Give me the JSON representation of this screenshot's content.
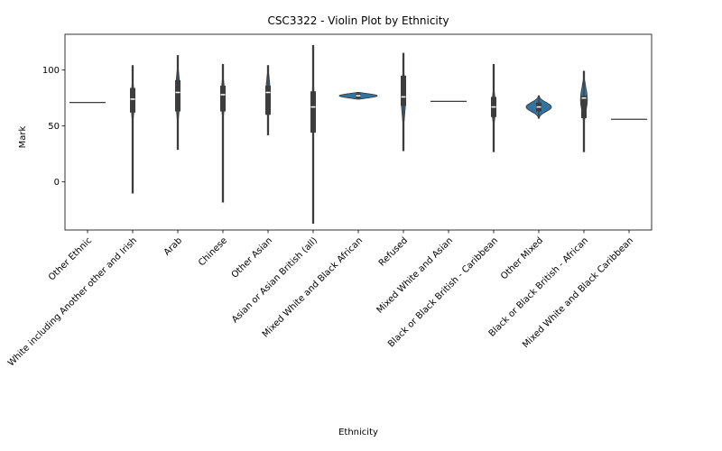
{
  "chart_data": {
    "type": "violin",
    "title": "CSC3322 - Violin Plot by Ethnicity",
    "xlabel": "Ethnicity",
    "ylabel": "Mark",
    "ylim": [
      -43,
      132
    ],
    "yticks": [
      0,
      50,
      100
    ],
    "grid": false,
    "legend": "none",
    "colors": {
      "violin": "#3274a1",
      "box": "#3d3d3d",
      "median": "#ffffff",
      "axis": "#000000"
    },
    "categories": [
      "Other Ethnic",
      "White including Another other and Irish",
      "Arab",
      "Chinese",
      "Other Asian",
      "Asian or Asian British (all)",
      "Mixed White and Black African",
      "Refused",
      "Mixed White and Asian",
      "Black or Black British - Caribbean",
      "Other Mixed",
      "Black or Black British - African",
      "Mixed White and Black Caribbean"
    ],
    "violins": [
      {
        "min": 71,
        "q1": 71,
        "median": 71,
        "q3": 71,
        "max": 71,
        "single": true
      },
      {
        "min": -10,
        "q1": 62,
        "median": 74,
        "q3": 84,
        "max": 104,
        "maxw": 0.04
      },
      {
        "min": 29,
        "q1": 63,
        "median": 80,
        "q3": 91,
        "max": 113,
        "maxw": 0.05
      },
      {
        "min": -18,
        "q1": 63,
        "median": 78,
        "q3": 86,
        "max": 105,
        "maxw": 0.045
      },
      {
        "min": 42,
        "q1": 60,
        "median": 80,
        "q3": 86,
        "max": 104,
        "maxw": 0.05
      },
      {
        "min": -37,
        "q1": 44,
        "median": 67,
        "q3": 81,
        "max": 122,
        "maxw": 0.025
      },
      {
        "min": 74,
        "q1": 75,
        "median": 77,
        "q3": 79,
        "max": 80,
        "maxw": 0.42
      },
      {
        "min": 28,
        "q1": 68,
        "median": 76,
        "q3": 95,
        "max": 115,
        "maxw": 0.05
      },
      {
        "min": 72,
        "q1": 72,
        "median": 72,
        "q3": 72,
        "max": 72,
        "single": true
      },
      {
        "min": 27,
        "q1": 58,
        "median": 67,
        "q3": 76,
        "max": 105,
        "maxw": 0.04
      },
      {
        "min": 57,
        "q1": 63,
        "median": 67,
        "q3": 71,
        "max": 77,
        "maxw": 0.28
      },
      {
        "min": 27,
        "q1": 57,
        "median": 75,
        "q3": 77,
        "max": 99,
        "maxw": 0.08
      },
      {
        "min": 56,
        "q1": 56,
        "median": 56,
        "q3": 56,
        "max": 56,
        "single": true
      }
    ]
  }
}
